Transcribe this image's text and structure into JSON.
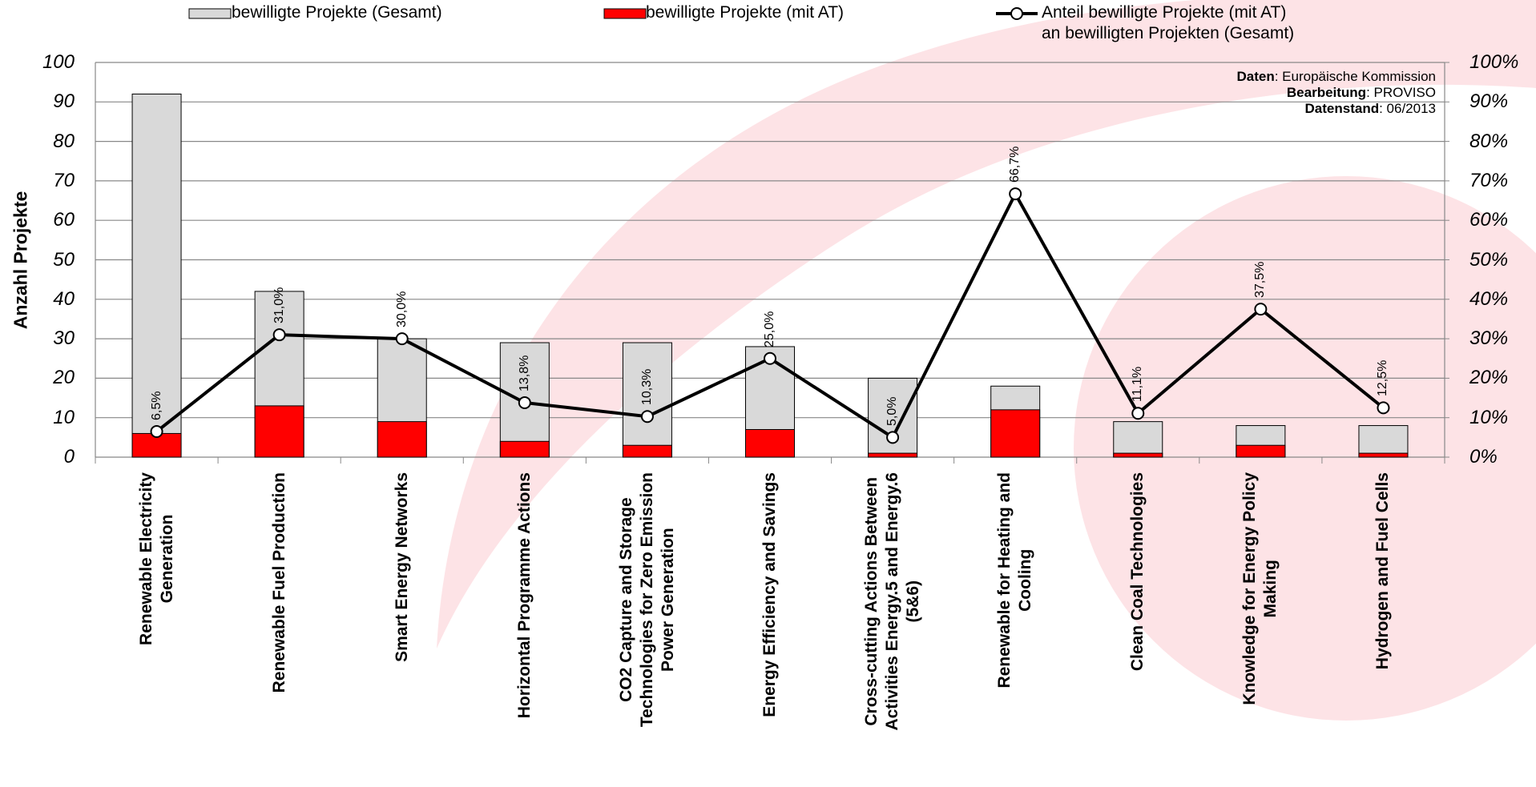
{
  "chart_data": {
    "type": "bar_line",
    "categories": [
      "Renewable Electricity\nGeneration",
      "Renewable Fuel Production",
      "Smart Energy Networks",
      "Horizontal Programme Actions",
      "CO2 Capture and Storage\nTechnologies for Zero Emission\nPower Generation",
      "Energy Efficiency and Savings",
      "Cross-cutting Actions Between\nActivities Energy.5 and Energy.6\n(5&6)",
      "Renewable for Heating and\nCooling",
      "Clean Coal Technologies",
      "Knowledge for Energy Policy\nMaking",
      "Hydrogen and Fuel Cells"
    ],
    "series": [
      {
        "name": "bewilligte Projekte (Gesamt)",
        "type": "bar",
        "color": "#d9d9d9",
        "values": [
          92,
          42,
          30,
          29,
          29,
          28,
          20,
          18,
          9,
          8,
          8
        ]
      },
      {
        "name": "bewilligte Projekte (mit AT)",
        "type": "bar",
        "color": "#ff0000",
        "values": [
          6,
          13,
          9,
          4,
          3,
          7,
          1,
          12,
          1,
          3,
          1
        ]
      },
      {
        "name": "Anteil bewilligte Projekte (mit AT)\nan bewilligten Projekten (Gesamt)",
        "type": "line",
        "axis": "y2",
        "color": "#000000",
        "values": [
          6.5,
          31.0,
          30.0,
          13.8,
          10.3,
          25.0,
          5.0,
          66.7,
          11.1,
          37.5,
          12.5
        ],
        "value_labels": [
          "6,5%",
          "31,0%",
          "30,0%",
          "13,8%",
          "10,3%",
          "25,0%",
          "5,0%",
          "66,7%",
          "11,1%",
          "37,5%",
          "12,5%"
        ]
      }
    ],
    "ylabel": "Anzahl Projekte",
    "ylim": [
      0,
      100
    ],
    "yticks": [
      0,
      10,
      20,
      30,
      40,
      50,
      60,
      70,
      80,
      90,
      100
    ],
    "y2lim": [
      0,
      100
    ],
    "y2ticks": [
      {
        "value": 0,
        "label": "0%"
      },
      {
        "value": 10,
        "label": "10%"
      },
      {
        "value": 20,
        "label": "20%"
      },
      {
        "value": 30,
        "label": "30%"
      },
      {
        "value": 40,
        "label": "40%"
      },
      {
        "value": 50,
        "label": "50%"
      },
      {
        "value": 60,
        "label": "60%"
      },
      {
        "value": 70,
        "label": "70%"
      },
      {
        "value": 80,
        "label": "80%"
      },
      {
        "value": 90,
        "label": "90%"
      },
      {
        "value": 100,
        "label": "100%"
      }
    ],
    "grid": true,
    "annotations": [
      {
        "bold": "Daten",
        "text": ": Europäische Kommission"
      },
      {
        "bold": "Bearbeitung",
        "text": ": PROVISO"
      },
      {
        "bold": "Datenstand",
        "text": ": 06/2013"
      }
    ]
  }
}
